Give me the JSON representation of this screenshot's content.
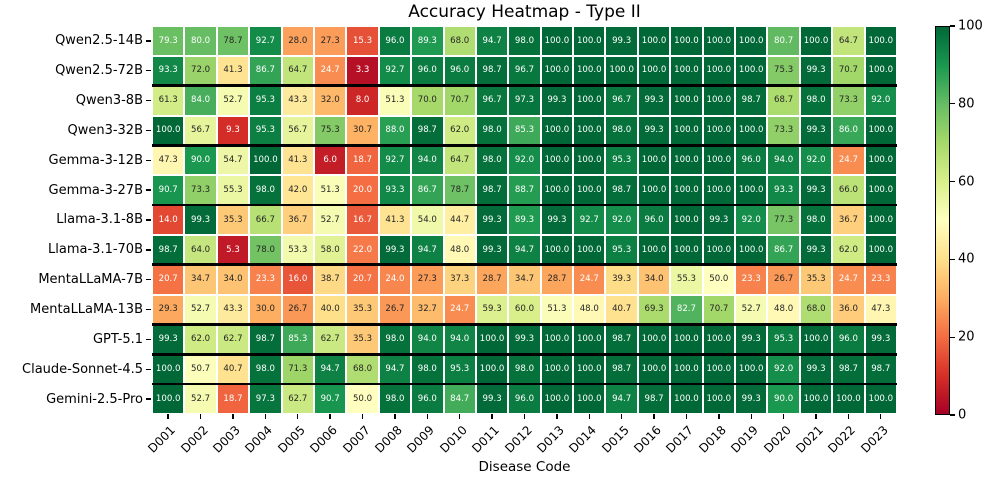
{
  "chart_data": {
    "type": "heatmap",
    "title": "Accuracy Heatmap - Type II",
    "xlabel": "Disease Code",
    "vmin": 0,
    "vmax": 100,
    "colormap": "RdYlGn",
    "colormap_stops": [
      "#a50026",
      "#d73027",
      "#f46d43",
      "#fdae61",
      "#fee08b",
      "#ffffbf",
      "#d9ef8b",
      "#a6d96a",
      "#66bd63",
      "#1a9850",
      "#006837"
    ],
    "colorbar_ticks": [
      0,
      20,
      40,
      60,
      80,
      100
    ],
    "columns": [
      "D001",
      "D002",
      "D003",
      "D004",
      "D005",
      "D006",
      "D007",
      "D008",
      "D009",
      "D010",
      "D011",
      "D012",
      "D013",
      "D014",
      "D015",
      "D016",
      "D017",
      "D018",
      "D019",
      "D020",
      "D021",
      "D022",
      "D023"
    ],
    "rows": [
      "Qwen2.5-14B",
      "Qwen2.5-72B",
      "Qwen3-8B",
      "Qwen3-32B",
      "Gemma-3-12B",
      "Gemma-3-27B",
      "Llama-3.1-8B",
      "Llama-3.1-70B",
      "MentaLLaMA-7B",
      "MentaLLaMA-13B",
      "GPT-5.1",
      "Claude-Sonnet-4.5",
      "Gemini-2.5-Pro"
    ],
    "values": [
      [
        79.3,
        80.0,
        78.7,
        92.7,
        28.0,
        27.3,
        15.3,
        96.0,
        89.3,
        68.0,
        94.7,
        98.0,
        100.0,
        100.0,
        99.3,
        100.0,
        100.0,
        100.0,
        100.0,
        80.7,
        100.0,
        64.7,
        100.0
      ],
      [
        93.3,
        72.0,
        41.3,
        86.7,
        64.7,
        24.7,
        3.3,
        92.7,
        96.0,
        96.0,
        98.7,
        96.7,
        100.0,
        100.0,
        100.0,
        100.0,
        100.0,
        100.0,
        100.0,
        75.3,
        99.3,
        70.7,
        100.0
      ],
      [
        61.3,
        84.0,
        52.7,
        95.3,
        43.3,
        32.0,
        8.0,
        51.3,
        70.0,
        70.7,
        96.7,
        97.3,
        99.3,
        100.0,
        96.7,
        99.3,
        100.0,
        100.0,
        98.7,
        68.7,
        98.0,
        73.3,
        92.0
      ],
      [
        100.0,
        56.7,
        9.3,
        95.3,
        56.7,
        75.3,
        30.7,
        88.0,
        98.7,
        62.0,
        98.0,
        85.3,
        100.0,
        100.0,
        98.0,
        99.3,
        100.0,
        100.0,
        100.0,
        73.3,
        99.3,
        86.0,
        100.0
      ],
      [
        47.3,
        90.0,
        54.7,
        100.0,
        41.3,
        6.0,
        18.7,
        92.7,
        94.0,
        64.7,
        98.0,
        92.0,
        100.0,
        100.0,
        95.3,
        100.0,
        100.0,
        100.0,
        96.0,
        94.0,
        92.0,
        24.7,
        100.0
      ],
      [
        90.7,
        73.3,
        55.3,
        98.0,
        42.0,
        51.3,
        20.0,
        93.3,
        86.7,
        78.7,
        98.7,
        88.7,
        100.0,
        100.0,
        98.7,
        100.0,
        100.0,
        100.0,
        100.0,
        93.3,
        99.3,
        66.0,
        100.0
      ],
      [
        14.0,
        99.3,
        35.3,
        66.7,
        36.7,
        52.7,
        16.7,
        41.3,
        54.0,
        44.7,
        99.3,
        89.3,
        99.3,
        92.7,
        92.0,
        96.0,
        100.0,
        99.3,
        92.0,
        77.3,
        98.0,
        36.7,
        100.0
      ],
      [
        98.7,
        64.0,
        5.3,
        78.0,
        53.3,
        58.0,
        22.0,
        99.3,
        94.7,
        48.0,
        99.3,
        94.7,
        100.0,
        100.0,
        95.3,
        100.0,
        100.0,
        100.0,
        100.0,
        86.7,
        99.3,
        62.0,
        100.0
      ],
      [
        20.7,
        34.7,
        34.0,
        23.3,
        16.0,
        38.7,
        20.7,
        24.0,
        27.3,
        37.3,
        28.7,
        34.7,
        28.7,
        24.7,
        39.3,
        34.0,
        55.3,
        50.0,
        23.3,
        26.7,
        35.3,
        24.7,
        23.3
      ],
      [
        29.3,
        52.7,
        43.3,
        30.0,
        26.7,
        40.0,
        35.3,
        26.7,
        32.7,
        24.7,
        59.3,
        60.0,
        51.3,
        48.0,
        40.7,
        69.3,
        82.7,
        70.7,
        52.7,
        48.0,
        68.0,
        36.0,
        47.3
      ],
      [
        99.3,
        62.0,
        62.7,
        98.7,
        85.3,
        62.7,
        35.3,
        98.0,
        94.0,
        94.0,
        100.0,
        99.3,
        100.0,
        100.0,
        98.7,
        100.0,
        100.0,
        100.0,
        99.3,
        95.3,
        100.0,
        96.0,
        99.3
      ],
      [
        100.0,
        50.7,
        40.7,
        98.0,
        71.3,
        94.7,
        68.0,
        94.7,
        98.0,
        95.3,
        100.0,
        98.0,
        100.0,
        100.0,
        98.7,
        100.0,
        100.0,
        100.0,
        100.0,
        92.0,
        99.3,
        98.7,
        98.7
      ],
      [
        100.0,
        52.7,
        18.7,
        97.3,
        62.7,
        90.7,
        50.0,
        98.0,
        96.0,
        84.7,
        99.3,
        96.0,
        100.0,
        100.0,
        94.7,
        98.7,
        100.0,
        100.0,
        99.3,
        90.0,
        100.0,
        100.0,
        100.0
      ]
    ],
    "group_separators_after_rows": [
      2,
      4,
      6,
      8,
      10,
      11,
      12
    ],
    "grid": false,
    "legend_position": "right-colorbar"
  }
}
